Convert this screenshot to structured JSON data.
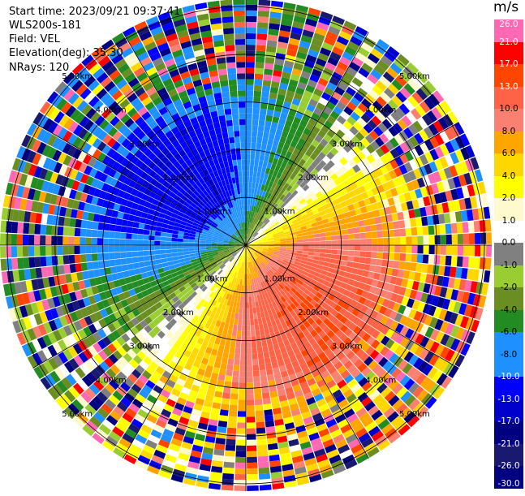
{
  "header": {
    "start_time": "Start time: 2023/09/21 09:37:41",
    "instrument": "WLS200s-181",
    "field": "Field: VEL",
    "elevation": "Elevation(deg): 35.30",
    "nrays": "NRays: 120"
  },
  "colorbar": {
    "unit": "m/s",
    "ticks": [
      "26.0",
      "21.0",
      "17.0",
      "13.0",
      "10.0",
      "8.0",
      "6.0",
      "4.0",
      "2.0",
      "1.0",
      "0.0",
      "-1.0",
      "-2.0",
      "-4.0",
      "-6.0",
      "-8.0",
      "-10.0",
      "-13.0",
      "-17.0",
      "-21.0",
      "-26.0",
      "-30.0"
    ],
    "colors": [
      "#ff69b4",
      "#ff0000",
      "#ff4500",
      "#ff6347",
      "#fa8072",
      "#ffa500",
      "#ffd700",
      "#ffff00",
      "#fffacd",
      "#ffffff",
      "#808080",
      "#9acd32",
      "#6b8e23",
      "#228b22",
      "#1e90ff",
      "#1e90ff",
      "#0000ff",
      "#0000cd",
      "#000080",
      "#191970",
      "#000080"
    ]
  },
  "chart_data": {
    "type": "heatmap",
    "projection": "polar PPI",
    "field": "VEL",
    "units": "m/s",
    "n_rays": 120,
    "range_rings_km": [
      1.0,
      2.0,
      3.0,
      4.0,
      5.0
    ],
    "range_ring_labels": [
      "1.00km",
      "2.00km",
      "3.00km",
      "4.00km",
      "5.00km"
    ],
    "value_range": [
      -30.0,
      26.0
    ],
    "pattern": {
      "negative_lobe_bearing_deg": 315,
      "positive_lobe_bearing_deg": 135,
      "near_range_max_abs_velocity": 13.0,
      "noise_beyond_km": 3.5
    }
  }
}
